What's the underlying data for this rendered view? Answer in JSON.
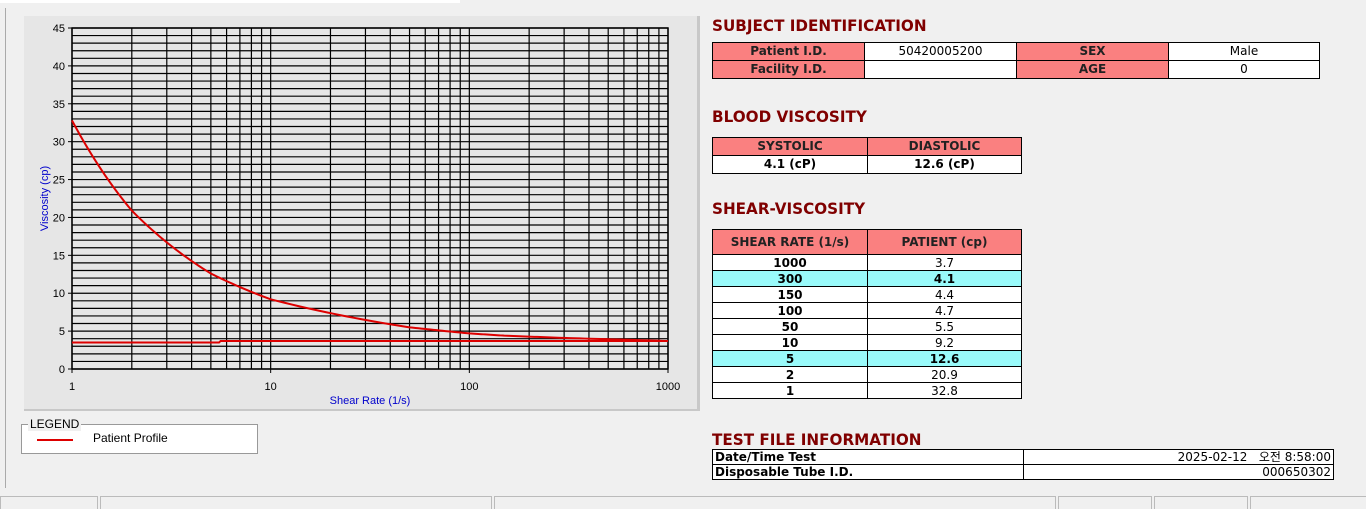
{
  "chart_data": {
    "type": "line",
    "xlabel": "Shear Rate (1/s)",
    "ylabel": "Viscosity (cp)",
    "xscale": "log",
    "xlim": [
      1,
      1000
    ],
    "ylim": [
      0,
      45
    ],
    "xticks": [
      "1",
      "10",
      "100",
      "1000"
    ],
    "yticks": [
      "0",
      "5",
      "10",
      "15",
      "20",
      "25",
      "30",
      "35",
      "40",
      "45"
    ],
    "grid": true,
    "legend_placement": "below-left",
    "series": [
      {
        "name": "Patient Profile",
        "color": "#dd0000",
        "x": [
          1,
          2,
          5,
          10,
          50,
          100,
          150,
          300,
          1000
        ],
        "y": [
          32.8,
          20.9,
          12.6,
          9.2,
          5.5,
          4.7,
          4.4,
          4.1,
          3.7
        ]
      },
      {
        "color": "#dd0000",
        "x": [
          1,
          5.5,
          5.6,
          1000
        ],
        "y": [
          3.5,
          3.5,
          3.7,
          3.7
        ]
      }
    ]
  },
  "legend": {
    "title": "LEGEND",
    "items": [
      "Patient Profile"
    ]
  },
  "subject": {
    "title": "SUBJECT IDENTIFICATION",
    "patient_id_label": "Patient I.D.",
    "patient_id": "50420005200",
    "sex_label": "SEX",
    "sex": "Male",
    "facility_id_label": "Facility I.D.",
    "facility_id": "",
    "age_label": "AGE",
    "age": "0"
  },
  "blood": {
    "title": "BLOOD VISCOSITY",
    "systolic_label": "SYSTOLIC",
    "diastolic_label": "DIASTOLIC",
    "systolic": "4.1 (cP)",
    "diastolic": "12.6 (cP)"
  },
  "shear": {
    "title": "SHEAR-VISCOSITY",
    "headers": [
      "SHEAR RATE (1/s)",
      "PATIENT (cp)"
    ],
    "rows": [
      [
        "1000",
        "3.7",
        false
      ],
      [
        "300",
        "4.1",
        true
      ],
      [
        "150",
        "4.4",
        false
      ],
      [
        "100",
        "4.7",
        false
      ],
      [
        "50",
        "5.5",
        false
      ],
      [
        "10",
        "9.2",
        false
      ],
      [
        "5",
        "12.6",
        true
      ],
      [
        "2",
        "20.9",
        false
      ],
      [
        "1",
        "32.8",
        false
      ]
    ],
    "highlight_color": "#99fafa"
  },
  "testfile": {
    "title": "TEST FILE INFORMATION",
    "datetime_label": "Date/Time Test",
    "datetime": "2025-02-12   오전 8:58:00",
    "tube_label": "Disposable Tube I.D.",
    "tube": "000650302"
  }
}
